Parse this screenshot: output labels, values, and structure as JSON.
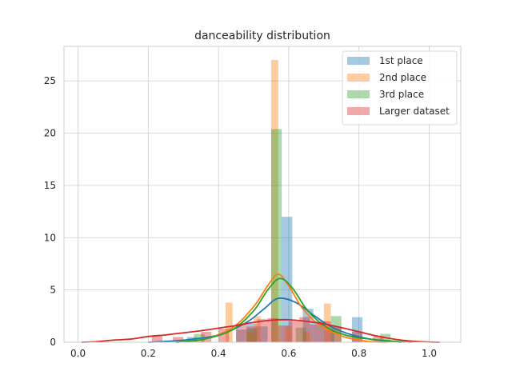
{
  "chart_data": {
    "type": "bar",
    "title": "danceability distribution",
    "xlabel": "",
    "ylabel": "",
    "xlim": [
      -0.04,
      1.09
    ],
    "ylim": [
      0,
      28.3
    ],
    "xticks": [
      0.0,
      0.2,
      0.4,
      0.6,
      0.8,
      1.0
    ],
    "xtick_labels": [
      "0.0",
      "0.2",
      "0.4",
      "0.6",
      "0.8",
      "1.0"
    ],
    "yticks": [
      0,
      5,
      10,
      15,
      20,
      25
    ],
    "ytick_labels": [
      "0",
      "5",
      "10",
      "15",
      "20",
      "25"
    ],
    "grid": true,
    "legend_position": "top-right",
    "series": [
      {
        "name": "1st place",
        "color": "#1f77b4",
        "bins": [
          {
            "x0": 0.31,
            "x1": 0.34,
            "y": 0.5
          },
          {
            "x0": 0.45,
            "x1": 0.48,
            "y": 1.2
          },
          {
            "x0": 0.48,
            "x1": 0.51,
            "y": 1.8
          },
          {
            "x0": 0.51,
            "x1": 0.54,
            "y": 1.5
          },
          {
            "x0": 0.58,
            "x1": 0.61,
            "y": 12.0
          },
          {
            "x0": 0.64,
            "x1": 0.67,
            "y": 3.2
          },
          {
            "x0": 0.67,
            "x1": 0.7,
            "y": 2.0
          },
          {
            "x0": 0.7,
            "x1": 0.73,
            "y": 1.2
          },
          {
            "x0": 0.78,
            "x1": 0.81,
            "y": 2.4
          }
        ],
        "kde": [
          [
            0.2,
            0.0
          ],
          [
            0.3,
            0.2
          ],
          [
            0.4,
            0.7
          ],
          [
            0.48,
            1.9
          ],
          [
            0.53,
            3.2
          ],
          [
            0.57,
            4.2
          ],
          [
            0.62,
            3.8
          ],
          [
            0.67,
            2.6
          ],
          [
            0.72,
            1.5
          ],
          [
            0.78,
            0.7
          ],
          [
            0.85,
            0.2
          ],
          [
            0.92,
            0.0
          ]
        ]
      },
      {
        "name": "2nd place",
        "color": "#ff7f0e",
        "bins": [
          {
            "x0": 0.42,
            "x1": 0.44,
            "y": 3.8
          },
          {
            "x0": 0.48,
            "x1": 0.5,
            "y": 1.0
          },
          {
            "x0": 0.5,
            "x1": 0.52,
            "y": 2.5
          },
          {
            "x0": 0.55,
            "x1": 0.57,
            "y": 27.0
          },
          {
            "x0": 0.59,
            "x1": 0.61,
            "y": 1.5
          },
          {
            "x0": 0.64,
            "x1": 0.66,
            "y": 1.0
          },
          {
            "x0": 0.7,
            "x1": 0.72,
            "y": 3.7
          }
        ],
        "kde": [
          [
            0.28,
            0.0
          ],
          [
            0.36,
            0.3
          ],
          [
            0.44,
            1.4
          ],
          [
            0.5,
            3.4
          ],
          [
            0.54,
            5.4
          ],
          [
            0.57,
            6.5
          ],
          [
            0.6,
            5.4
          ],
          [
            0.64,
            3.2
          ],
          [
            0.69,
            1.6
          ],
          [
            0.75,
            0.6
          ],
          [
            0.82,
            0.1
          ],
          [
            0.88,
            0.0
          ]
        ]
      },
      {
        "name": "3rd place",
        "color": "#2ca02c",
        "bins": [
          {
            "x0": 0.33,
            "x1": 0.36,
            "y": 0.8
          },
          {
            "x0": 0.48,
            "x1": 0.51,
            "y": 1.3
          },
          {
            "x0": 0.55,
            "x1": 0.58,
            "y": 20.4
          },
          {
            "x0": 0.62,
            "x1": 0.65,
            "y": 1.4
          },
          {
            "x0": 0.72,
            "x1": 0.75,
            "y": 2.5
          },
          {
            "x0": 0.86,
            "x1": 0.89,
            "y": 0.8
          }
        ],
        "kde": [
          [
            0.28,
            0.0
          ],
          [
            0.36,
            0.3
          ],
          [
            0.44,
            1.2
          ],
          [
            0.5,
            3.0
          ],
          [
            0.54,
            5.0
          ],
          [
            0.575,
            6.1
          ],
          [
            0.61,
            5.2
          ],
          [
            0.65,
            3.2
          ],
          [
            0.7,
            1.6
          ],
          [
            0.76,
            0.7
          ],
          [
            0.83,
            0.3
          ],
          [
            0.9,
            0.1
          ],
          [
            0.95,
            0.0
          ]
        ]
      },
      {
        "name": "Larger dataset",
        "color": "#d62728",
        "bins": [
          {
            "x0": 0.21,
            "x1": 0.24,
            "y": 0.6
          },
          {
            "x0": 0.27,
            "x1": 0.3,
            "y": 0.5
          },
          {
            "x0": 0.35,
            "x1": 0.38,
            "y": 1.0
          },
          {
            "x0": 0.4,
            "x1": 0.43,
            "y": 1.3
          },
          {
            "x0": 0.45,
            "x1": 0.48,
            "y": 1.8
          },
          {
            "x0": 0.48,
            "x1": 0.51,
            "y": 1.5
          },
          {
            "x0": 0.51,
            "x1": 0.54,
            "y": 2.2
          },
          {
            "x0": 0.54,
            "x1": 0.57,
            "y": 2.3
          },
          {
            "x0": 0.57,
            "x1": 0.6,
            "y": 1.6
          },
          {
            "x0": 0.6,
            "x1": 0.63,
            "y": 2.0
          },
          {
            "x0": 0.63,
            "x1": 0.66,
            "y": 2.4
          },
          {
            "x0": 0.66,
            "x1": 0.69,
            "y": 1.7
          },
          {
            "x0": 0.69,
            "x1": 0.72,
            "y": 2.0
          },
          {
            "x0": 0.72,
            "x1": 0.75,
            "y": 1.5
          },
          {
            "x0": 0.78,
            "x1": 0.81,
            "y": 1.0
          },
          {
            "x0": 0.84,
            "x1": 0.87,
            "y": 0.6
          }
        ],
        "kde": [
          [
            0.01,
            0.0
          ],
          [
            0.05,
            0.05
          ],
          [
            0.1,
            0.2
          ],
          [
            0.15,
            0.3
          ],
          [
            0.2,
            0.55
          ],
          [
            0.25,
            0.7
          ],
          [
            0.3,
            0.9
          ],
          [
            0.35,
            1.1
          ],
          [
            0.4,
            1.35
          ],
          [
            0.45,
            1.6
          ],
          [
            0.5,
            1.9
          ],
          [
            0.55,
            2.1
          ],
          [
            0.6,
            2.15
          ],
          [
            0.65,
            2.0
          ],
          [
            0.7,
            1.75
          ],
          [
            0.75,
            1.4
          ],
          [
            0.8,
            1.0
          ],
          [
            0.85,
            0.6
          ],
          [
            0.9,
            0.3
          ],
          [
            0.95,
            0.1
          ],
          [
            1.0,
            0.02
          ],
          [
            1.03,
            0.0
          ]
        ]
      }
    ]
  }
}
